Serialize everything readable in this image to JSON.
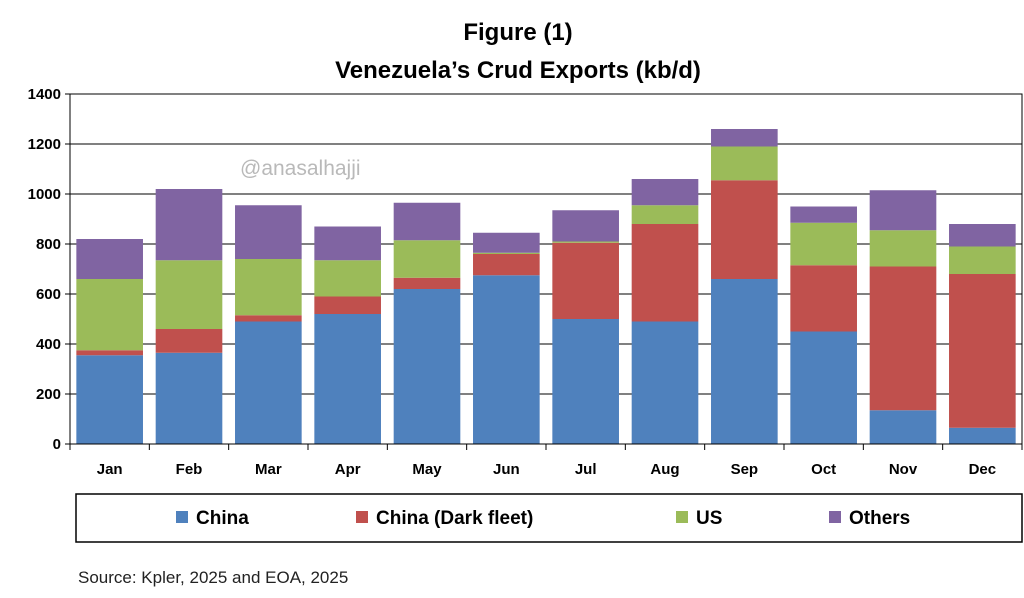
{
  "chart_data": {
    "type": "bar",
    "stacked": true,
    "title": "Figure (1)",
    "subtitle": "Venezuela’s Crud Exports (kb/d)",
    "categories": [
      "Jan",
      "Feb",
      "Mar",
      "Apr",
      "May",
      "Jun",
      "Jul",
      "Aug",
      "Sep",
      "Oct",
      "Nov",
      "Dec"
    ],
    "series": [
      {
        "name": "China",
        "color": "#4f81bd",
        "values": [
          355,
          365,
          490,
          520,
          620,
          675,
          500,
          490,
          660,
          450,
          135,
          65
        ]
      },
      {
        "name": "China (Dark fleet)",
        "color": "#c0504d",
        "values": [
          20,
          95,
          25,
          70,
          45,
          85,
          305,
          390,
          395,
          265,
          575,
          615
        ]
      },
      {
        "name": "US",
        "color": "#9bbb59",
        "values": [
          285,
          275,
          225,
          145,
          150,
          5,
          5,
          75,
          135,
          170,
          145,
          110
        ]
      },
      {
        "name": "Others",
        "color": "#8064a2",
        "values": [
          160,
          285,
          215,
          135,
          150,
          80,
          125,
          105,
          70,
          65,
          160,
          90
        ]
      }
    ],
    "ylim": [
      0,
      1400
    ],
    "yticks": [
      0,
      200,
      400,
      600,
      800,
      1000,
      1200,
      1400
    ],
    "grid": true,
    "legend_position": "bottom"
  },
  "watermark": "@anasalhajji",
  "source": "Source: Kpler, 2025 and EOA, 2025"
}
